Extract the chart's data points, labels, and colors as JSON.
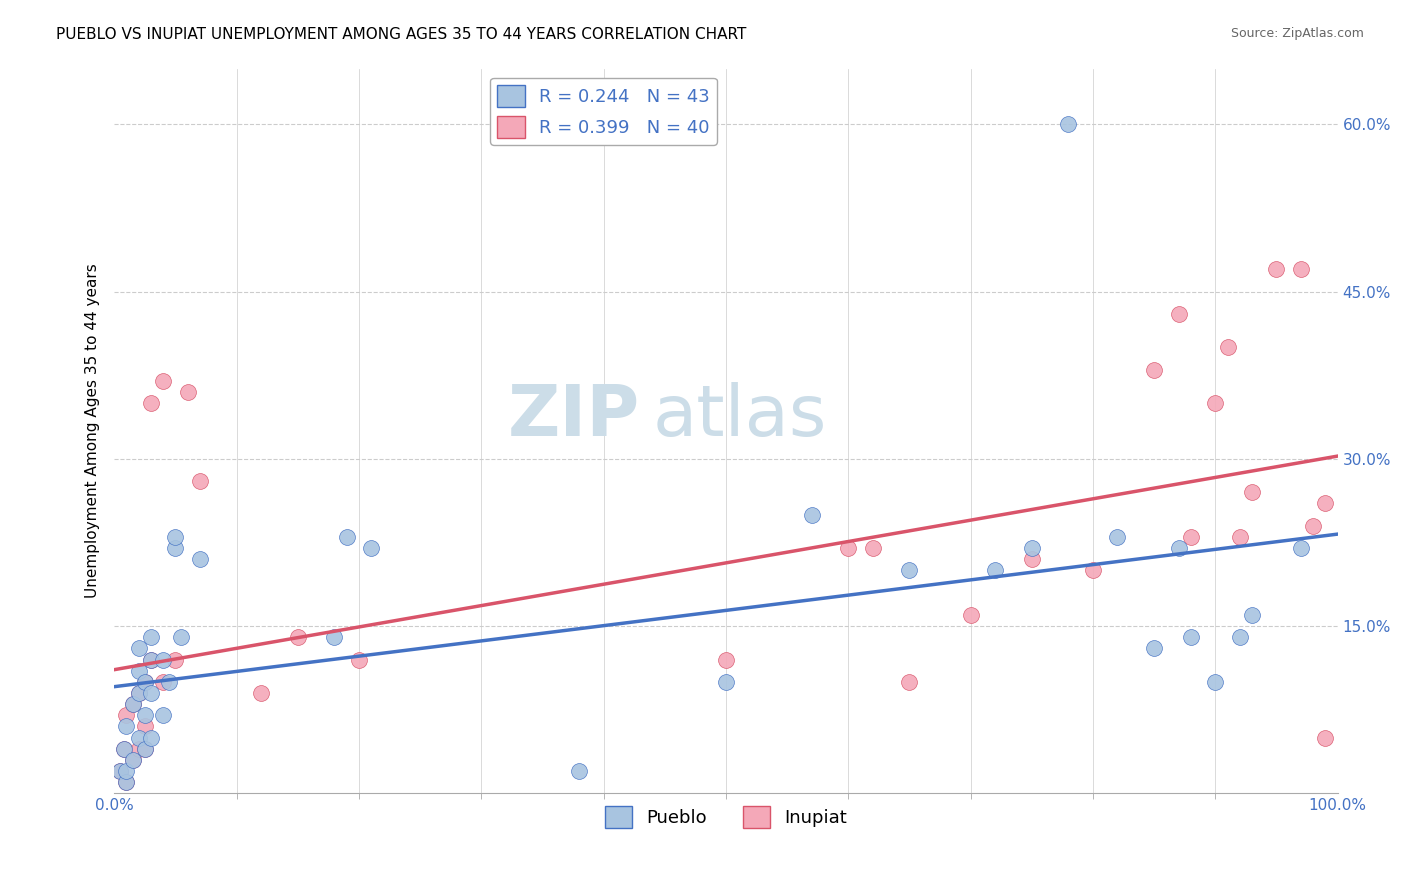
{
  "title": "PUEBLO VS INUPIAT UNEMPLOYMENT AMONG AGES 35 TO 44 YEARS CORRELATION CHART",
  "source": "Source: ZipAtlas.com",
  "ylabel": "Unemployment Among Ages 35 to 44 years",
  "xlim": [
    0.0,
    1.0
  ],
  "ylim": [
    0.0,
    0.65
  ],
  "xtick_major": [
    0.0,
    1.0
  ],
  "xtick_major_labels": [
    "0.0%",
    "100.0%"
  ],
  "xtick_minor": [
    0.1,
    0.2,
    0.3,
    0.4,
    0.5,
    0.6,
    0.7,
    0.8,
    0.9
  ],
  "ytick_positions": [
    0.15,
    0.3,
    0.45,
    0.6
  ],
  "ytick_labels": [
    "15.0%",
    "30.0%",
    "45.0%",
    "60.0%"
  ],
  "pueblo_color": "#a8c4e0",
  "inupiat_color": "#f4a8b8",
  "pueblo_line_color": "#4472c4",
  "inupiat_line_color": "#d9546a",
  "pueblo_R": 0.244,
  "pueblo_N": 43,
  "inupiat_R": 0.399,
  "inupiat_N": 40,
  "watermark_zip": "ZIP",
  "watermark_atlas": "atlas",
  "pueblo_x": [
    0.005,
    0.008,
    0.01,
    0.01,
    0.01,
    0.015,
    0.015,
    0.02,
    0.02,
    0.02,
    0.02,
    0.025,
    0.025,
    0.025,
    0.03,
    0.03,
    0.03,
    0.03,
    0.04,
    0.04,
    0.045,
    0.05,
    0.05,
    0.055,
    0.07,
    0.18,
    0.19,
    0.21,
    0.38,
    0.5,
    0.57,
    0.65,
    0.72,
    0.75,
    0.78,
    0.82,
    0.85,
    0.87,
    0.88,
    0.9,
    0.92,
    0.93,
    0.97
  ],
  "pueblo_y": [
    0.02,
    0.04,
    0.01,
    0.02,
    0.06,
    0.03,
    0.08,
    0.05,
    0.09,
    0.11,
    0.13,
    0.04,
    0.07,
    0.1,
    0.05,
    0.09,
    0.12,
    0.14,
    0.07,
    0.12,
    0.1,
    0.22,
    0.23,
    0.14,
    0.21,
    0.14,
    0.23,
    0.22,
    0.02,
    0.1,
    0.25,
    0.2,
    0.2,
    0.22,
    0.6,
    0.23,
    0.13,
    0.22,
    0.14,
    0.1,
    0.14,
    0.16,
    0.22
  ],
  "inupiat_x": [
    0.005,
    0.008,
    0.01,
    0.01,
    0.015,
    0.015,
    0.02,
    0.02,
    0.025,
    0.025,
    0.025,
    0.03,
    0.03,
    0.04,
    0.04,
    0.05,
    0.06,
    0.07,
    0.12,
    0.15,
    0.2,
    0.5,
    0.6,
    0.62,
    0.65,
    0.7,
    0.75,
    0.8,
    0.85,
    0.87,
    0.88,
    0.9,
    0.91,
    0.92,
    0.93,
    0.95,
    0.97,
    0.98,
    0.99,
    0.99
  ],
  "inupiat_y": [
    0.02,
    0.04,
    0.01,
    0.07,
    0.03,
    0.08,
    0.04,
    0.09,
    0.04,
    0.06,
    0.1,
    0.12,
    0.35,
    0.37,
    0.1,
    0.12,
    0.36,
    0.28,
    0.09,
    0.14,
    0.12,
    0.12,
    0.22,
    0.22,
    0.1,
    0.16,
    0.21,
    0.2,
    0.38,
    0.43,
    0.23,
    0.35,
    0.4,
    0.23,
    0.27,
    0.47,
    0.47,
    0.24,
    0.26,
    0.05
  ],
  "background_color": "#ffffff",
  "grid_color": "#cccccc",
  "title_fontsize": 11,
  "axis_label_fontsize": 11,
  "tick_fontsize": 11,
  "legend_fontsize": 13,
  "watermark_fontsize_zip": 52,
  "watermark_fontsize_atlas": 52,
  "watermark_color": "#ccdde8",
  "source_fontsize": 9
}
